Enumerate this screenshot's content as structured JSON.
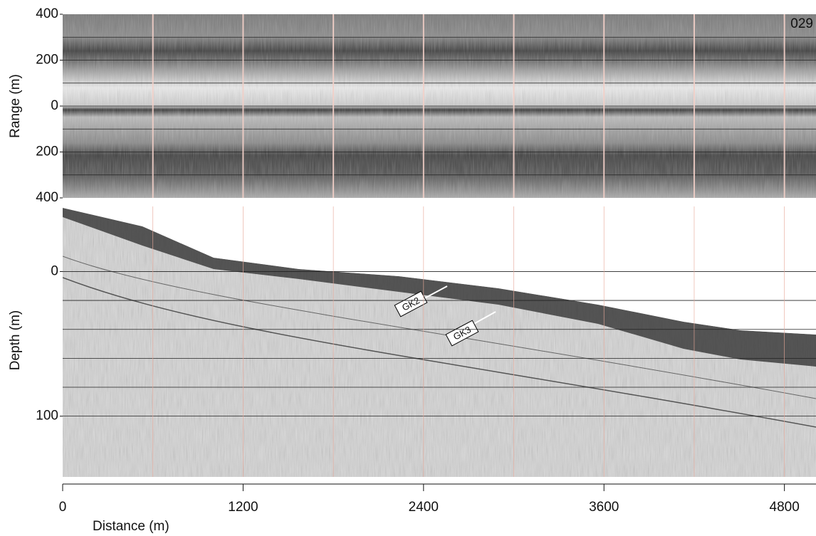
{
  "chart_data": [
    {
      "type": "sidescan",
      "ylabel": "Range (m)",
      "annotation": "029",
      "ylim": [
        -400,
        400
      ],
      "yticks": [
        {
          "value": 400,
          "label": "400"
        },
        {
          "value": 200,
          "label": "200"
        },
        0,
        {
          "value": -200,
          "label": "200"
        },
        {
          "value": -400,
          "label": "400"
        }
      ],
      "ygrid": [
        300,
        200,
        100,
        0,
        -100,
        -200,
        -300
      ],
      "event_marks": [
        600,
        1200,
        1800,
        2400,
        3000,
        3600,
        4200,
        4800
      ]
    },
    {
      "type": "profile",
      "ylabel": "Depth (m)",
      "xlabel": "Distance (m)",
      "ylim": [
        -45,
        142
      ],
      "yinvert": true,
      "yticks": [
        0,
        100
      ],
      "ygrid": [
        0,
        20,
        40,
        60,
        80,
        100
      ],
      "xlim": [
        0,
        5010
      ],
      "xticks": [
        0,
        1200,
        2400,
        3600,
        4800
      ],
      "event_marks": [
        600,
        1200,
        1800,
        2400,
        3000,
        3600,
        4200,
        4800
      ],
      "annotations": [
        "GK2",
        "GK3"
      ]
    }
  ]
}
